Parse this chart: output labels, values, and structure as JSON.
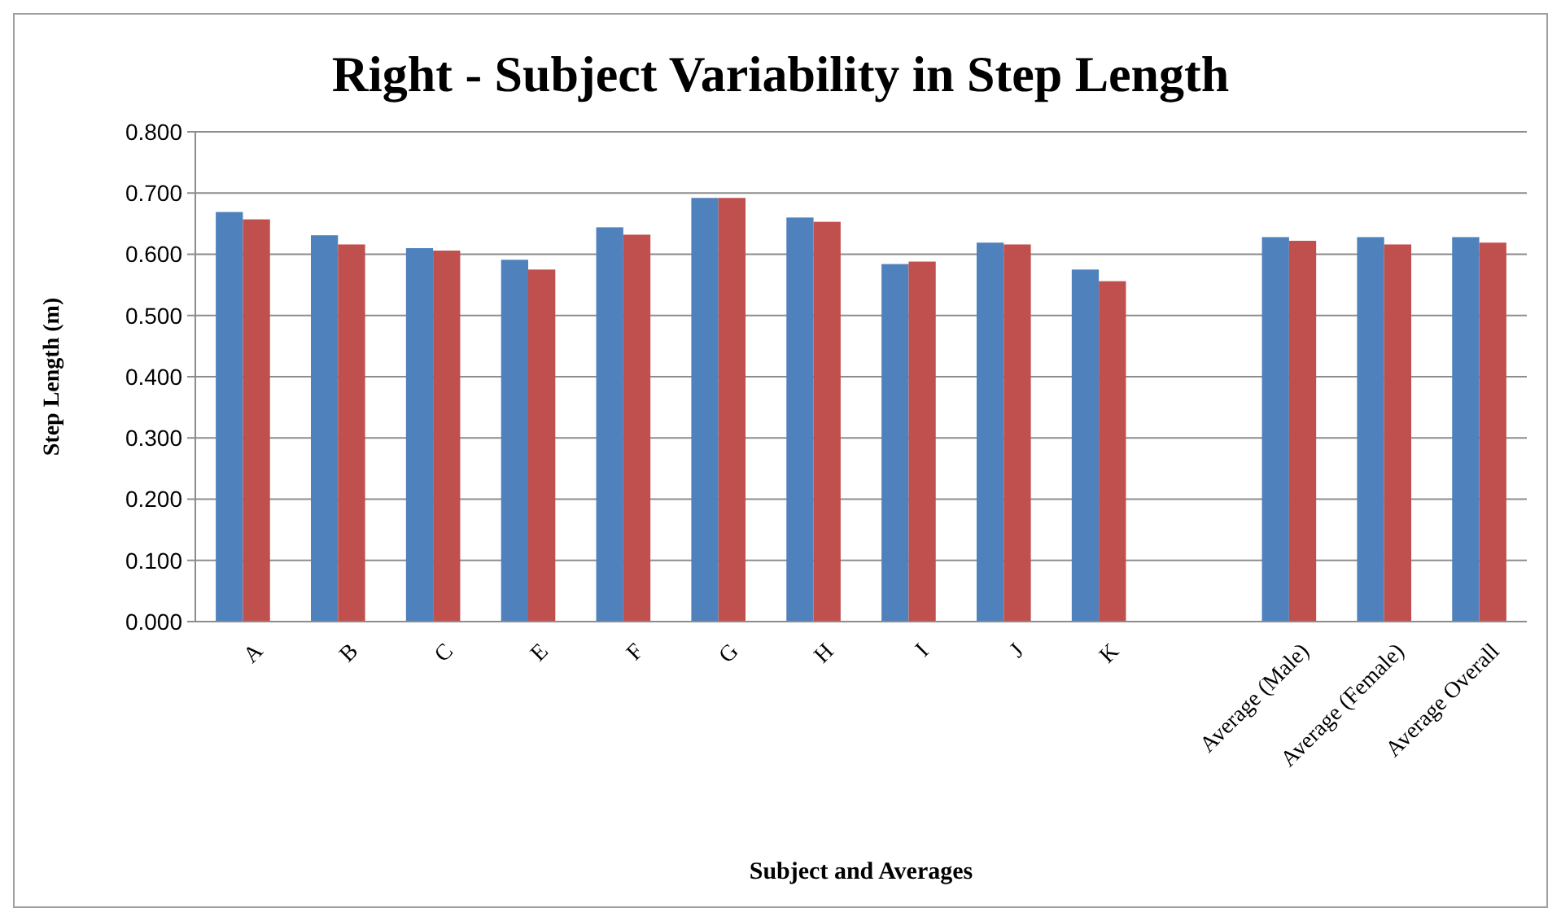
{
  "chart_data": {
    "type": "bar",
    "title": "Right - Subject Variability in Step Length",
    "xlabel": "Subject and Averages",
    "ylabel": "Step Length (m)",
    "categories": [
      "A",
      "B",
      "C",
      "E",
      "F",
      "G",
      "H",
      "I",
      "J",
      "K",
      null,
      "Average (Male)",
      "Average (Female)",
      "Average Overall"
    ],
    "series": [
      {
        "color": "#4f81bd",
        "values": [
          0.669,
          0.631,
          0.61,
          0.591,
          0.644,
          0.692,
          0.66,
          0.584,
          0.619,
          0.575,
          null,
          0.628,
          0.628,
          0.628
        ]
      },
      {
        "color": "#c0504d",
        "values": [
          0.657,
          0.616,
          0.606,
          0.575,
          0.632,
          0.692,
          0.653,
          0.588,
          0.616,
          0.556,
          null,
          0.622,
          0.616,
          0.619
        ]
      }
    ],
    "ylim": [
      0,
      0.8
    ],
    "yticks": [
      {
        "value": 0,
        "label": "0.000"
      },
      {
        "value": 0.1,
        "label": "0.100"
      },
      {
        "value": 0.2,
        "label": "0.200"
      },
      {
        "value": 0.3,
        "label": "0.300"
      },
      {
        "value": 0.4,
        "label": "0.400"
      },
      {
        "value": 0.5,
        "label": "0.500"
      },
      {
        "value": 0.6,
        "label": "0.600"
      },
      {
        "value": 0.7,
        "label": "0.700"
      },
      {
        "value": 0.8,
        "label": "0.800"
      }
    ],
    "grid": "y"
  }
}
